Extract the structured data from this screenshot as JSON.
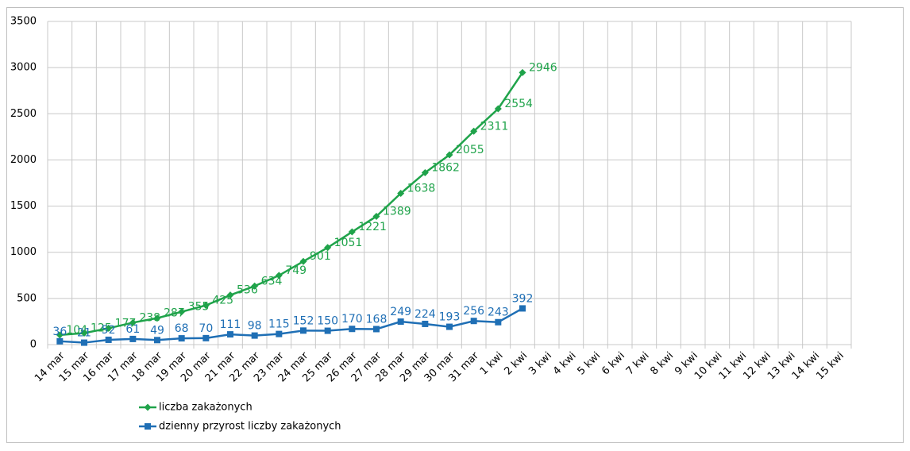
{
  "chart_data": {
    "type": "line",
    "categories": [
      "14 mar",
      "15 mar",
      "16 mar",
      "17 mar",
      "18 mar",
      "19 mar",
      "20 mar",
      "21 mar",
      "22 mar",
      "23 mar",
      "24 mar",
      "25 mar",
      "26 mar",
      "27 mar",
      "28 mar",
      "29 mar",
      "30 mar",
      "31 mar",
      "1 kwi",
      "2 kwi",
      "3 kwi",
      "4 kwi",
      "5 kwi",
      "6 kwi",
      "7 kwi",
      "8 kwi",
      "9 kwi",
      "10 kwi",
      "11 kwi",
      "12 kwi",
      "13 kwi",
      "14 kwi",
      "15 kwi"
    ],
    "series": [
      {
        "name": "liczba zakażonych",
        "color": "#1fa34a",
        "marker": "diamond",
        "values": [
          104,
          125,
          177,
          238,
          287,
          355,
          425,
          536,
          634,
          749,
          901,
          1051,
          1221,
          1389,
          1638,
          1862,
          2055,
          2311,
          2554,
          2946,
          null,
          null,
          null,
          null,
          null,
          null,
          null,
          null,
          null,
          null,
          null,
          null,
          null
        ]
      },
      {
        "name": "dzienny przyrost liczby zakażonych",
        "color": "#1f6fb5",
        "marker": "square",
        "values": [
          36,
          21,
          52,
          61,
          49,
          68,
          70,
          111,
          98,
          115,
          152,
          150,
          170,
          168,
          249,
          224,
          193,
          256,
          243,
          392,
          null,
          null,
          null,
          null,
          null,
          null,
          null,
          null,
          null,
          null,
          null,
          null,
          null
        ]
      }
    ],
    "ylim": [
      0,
      3500
    ],
    "yticks": [
      0,
      500,
      1000,
      1500,
      2000,
      2500,
      3000,
      3500
    ],
    "grid": true,
    "legend": "bottom-left"
  }
}
